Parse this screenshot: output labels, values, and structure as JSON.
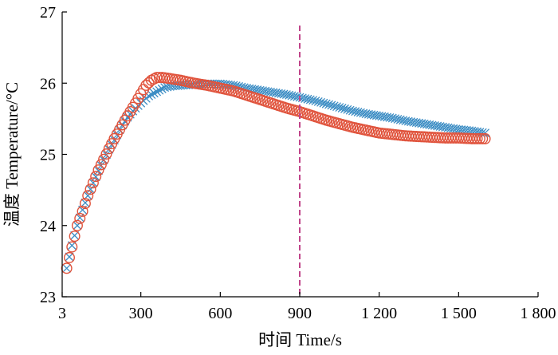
{
  "chart_data": {
    "type": "scatter",
    "xlabel": "时间 Time/s",
    "ylabel": "温度 Temperature/°C",
    "xlim": [
      3,
      1800
    ],
    "ylim": [
      23,
      27
    ],
    "x_ticks": [
      3,
      300,
      600,
      900,
      1200,
      1500,
      1800
    ],
    "x_tick_labels": [
      "3",
      "300",
      "600",
      "900",
      "1 200",
      "1 500",
      "1 800"
    ],
    "y_ticks": [
      23,
      24,
      25,
      26,
      27
    ],
    "y_tick_labels": [
      "23",
      "24",
      "25",
      "26",
      "27"
    ],
    "grid": false,
    "reference_line": {
      "x": 900,
      "style": "dashed",
      "color": "#c0458a"
    },
    "series": [
      {
        "marker": "x",
        "color": "#3c8dc4",
        "anchors": [
          [
            20,
            23.4
          ],
          [
            40,
            23.72
          ],
          [
            60,
            24.0
          ],
          [
            80,
            24.22
          ],
          [
            100,
            24.42
          ],
          [
            120,
            24.6
          ],
          [
            140,
            24.77
          ],
          [
            160,
            24.92
          ],
          [
            180,
            25.07
          ],
          [
            200,
            25.2
          ],
          [
            225,
            25.38
          ],
          [
            250,
            25.52
          ],
          [
            275,
            25.63
          ],
          [
            300,
            25.72
          ],
          [
            330,
            25.82
          ],
          [
            360,
            25.88
          ],
          [
            390,
            25.94
          ],
          [
            420,
            25.96
          ],
          [
            460,
            25.97
          ],
          [
            500,
            25.98
          ],
          [
            550,
            25.99
          ],
          [
            600,
            25.99
          ],
          [
            650,
            25.97
          ],
          [
            700,
            25.93
          ],
          [
            750,
            25.9
          ],
          [
            800,
            25.87
          ],
          [
            850,
            25.84
          ],
          [
            900,
            25.8
          ],
          [
            950,
            25.76
          ],
          [
            1000,
            25.71
          ],
          [
            1050,
            25.66
          ],
          [
            1100,
            25.61
          ],
          [
            1150,
            25.57
          ],
          [
            1200,
            25.54
          ],
          [
            1250,
            25.51
          ],
          [
            1300,
            25.47
          ],
          [
            1350,
            25.44
          ],
          [
            1400,
            25.41
          ],
          [
            1450,
            25.38
          ],
          [
            1500,
            25.35
          ],
          [
            1550,
            25.33
          ],
          [
            1600,
            25.3
          ]
        ],
        "step": 10
      },
      {
        "marker": "o",
        "color": "#e0533c",
        "anchors": [
          [
            20,
            23.4
          ],
          [
            40,
            23.7
          ],
          [
            60,
            24.0
          ],
          [
            80,
            24.2
          ],
          [
            100,
            24.42
          ],
          [
            120,
            24.6
          ],
          [
            140,
            24.78
          ],
          [
            160,
            24.93
          ],
          [
            180,
            25.08
          ],
          [
            200,
            25.22
          ],
          [
            220,
            25.35
          ],
          [
            240,
            25.48
          ],
          [
            260,
            25.6
          ],
          [
            280,
            25.72
          ],
          [
            300,
            25.85
          ],
          [
            320,
            25.97
          ],
          [
            340,
            26.04
          ],
          [
            360,
            26.08
          ],
          [
            380,
            26.08
          ],
          [
            400,
            26.07
          ],
          [
            450,
            26.04
          ],
          [
            500,
            26.0
          ],
          [
            550,
            25.97
          ],
          [
            600,
            25.93
          ],
          [
            650,
            25.89
          ],
          [
            700,
            25.83
          ],
          [
            750,
            25.77
          ],
          [
            800,
            25.71
          ],
          [
            850,
            25.65
          ],
          [
            900,
            25.6
          ],
          [
            950,
            25.54
          ],
          [
            1000,
            25.48
          ],
          [
            1050,
            25.43
          ],
          [
            1100,
            25.38
          ],
          [
            1150,
            25.34
          ],
          [
            1200,
            25.3
          ],
          [
            1250,
            25.28
          ],
          [
            1300,
            25.26
          ],
          [
            1350,
            25.25
          ],
          [
            1400,
            25.24
          ],
          [
            1450,
            25.23
          ],
          [
            1500,
            25.23
          ],
          [
            1550,
            25.22
          ],
          [
            1600,
            25.22
          ]
        ],
        "step": 10
      }
    ]
  }
}
